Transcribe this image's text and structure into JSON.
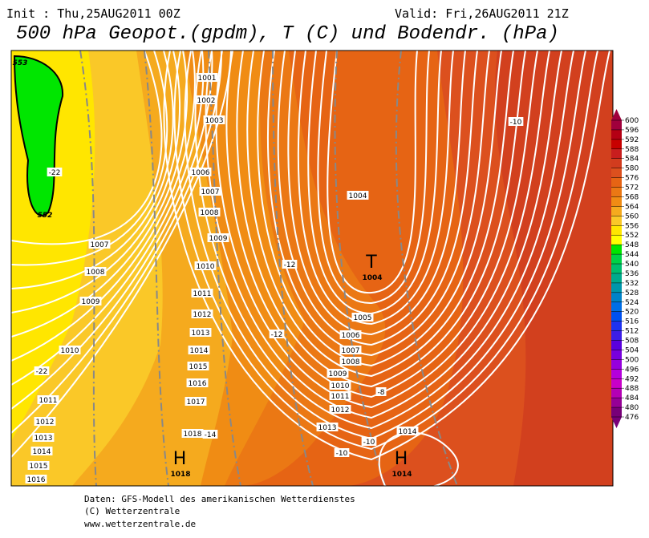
{
  "header": {
    "init": "Init : Thu,25AUG2011 00Z",
    "valid": "Valid: Fri,26AUG2011 21Z",
    "title": "500 hPa Geopot.(gpdm), T (C) und Bodendr. (hPa)"
  },
  "map": {
    "isobar_labels": [
      1001,
      1002,
      1003,
      1006,
      1007,
      1008,
      1009,
      1010,
      1011,
      1012,
      1013,
      1014,
      1015,
      1016,
      1017,
      1018,
      1007,
      1008,
      1009,
      1010,
      1011,
      1012,
      1013,
      1014,
      1015,
      1016,
      1004,
      1005,
      1006,
      1007,
      1008,
      1009,
      1010,
      1011,
      1012,
      1013,
      1014
    ],
    "temperature_labels": [
      -22,
      -22,
      -12,
      -12,
      -10,
      -8,
      -10,
      -10,
      -14
    ],
    "geopotential_labels": [
      553,
      552
    ],
    "pressure_centers": [
      {
        "symbol": "T",
        "value": 1004
      },
      {
        "symbol": "H",
        "value": 1018
      },
      {
        "symbol": "H",
        "value": 1014
      }
    ]
  },
  "colorbar": {
    "labels": [
      600,
      596,
      592,
      588,
      584,
      580,
      576,
      572,
      568,
      564,
      560,
      556,
      552,
      548,
      544,
      540,
      536,
      532,
      528,
      524,
      520,
      516,
      512,
      508,
      504,
      500,
      496,
      492,
      488,
      484,
      480,
      476
    ],
    "colors": [
      "#a0003c",
      "#b40014",
      "#c80000",
      "#c81e1e",
      "#d23c1e",
      "#dc501e",
      "#e66414",
      "#eb7814",
      "#f08c14",
      "#f5aa1e",
      "#fac828",
      "#ffe600",
      "#ffff00",
      "#00e600",
      "#00d246",
      "#00be6e",
      "#00aa8c",
      "#0096aa",
      "#0082c8",
      "#006ee6",
      "#0050f0",
      "#1e32f0",
      "#3c1ee6",
      "#5a00dc",
      "#7800dc",
      "#9600dc",
      "#b400dc",
      "#c800c8",
      "#b400b4",
      "#960096",
      "#780078"
    ]
  },
  "footer": [
    "Daten: GFS-Modell des amerikanischen Wetterdienstes",
    "(C) Wetterzentrale",
    "www.wetterzentrale.de"
  ]
}
